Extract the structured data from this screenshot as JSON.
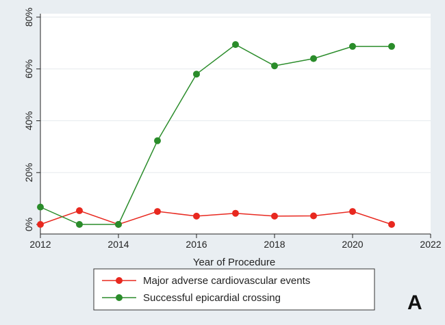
{
  "chart_data": {
    "type": "line",
    "panel_label": "A",
    "xlabel": "Year of Procedure",
    "ylabel": "",
    "xlim": [
      2012,
      2022
    ],
    "ylim": [
      0,
      80
    ],
    "x_ticks": [
      2012,
      2014,
      2016,
      2018,
      2020,
      2022
    ],
    "y_ticks": [
      0,
      20,
      40,
      60,
      80
    ],
    "y_tick_format": "percent",
    "grid": true,
    "legend_position": "bottom",
    "series": [
      {
        "name": "Major adverse cardiovascular events",
        "color": "#e8281f",
        "x": [
          2012,
          2013,
          2014,
          2015,
          2016,
          2017,
          2018,
          2019,
          2020,
          2021
        ],
        "y": [
          0,
          5.3,
          0,
          5,
          3.2,
          4.3,
          3.2,
          3.3,
          5,
          0
        ]
      },
      {
        "name": "Successful epicardial crossing",
        "color": "#2a8c2a",
        "x": [
          2012,
          2013,
          2014,
          2015,
          2016,
          2017,
          2018,
          2019,
          2020,
          2021
        ],
        "y": [
          6.7,
          0,
          0,
          32.3,
          58,
          69.4,
          61.2,
          64,
          68.7,
          68.7
        ]
      }
    ]
  }
}
